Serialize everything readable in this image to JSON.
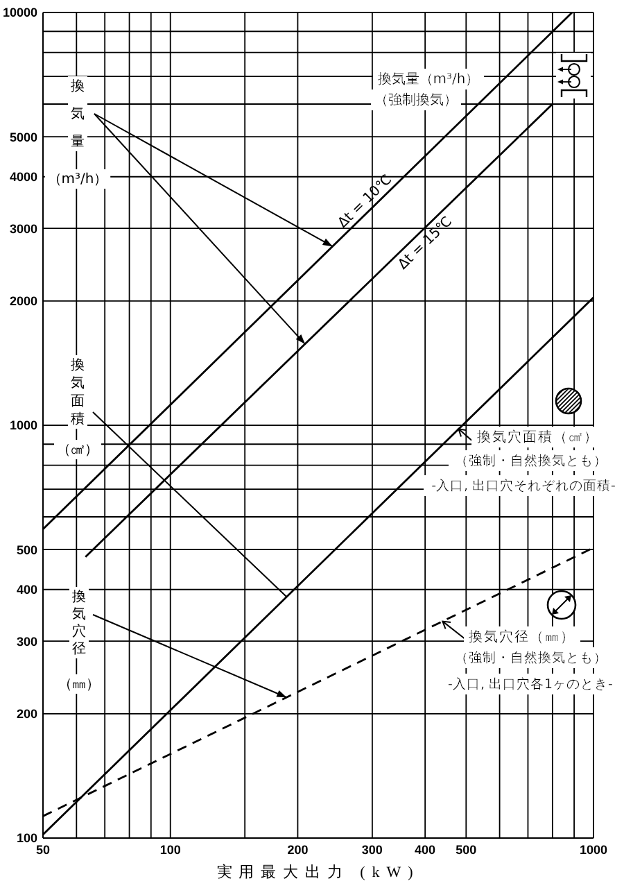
{
  "chart_data": {
    "type": "line",
    "xlabel": "実用最大出力 (kW)",
    "series": [
      {
        "name": "Δt = 10℃",
        "color": "#000000",
        "x": [
          50,
          890
        ],
        "values": [
          560,
          10000
        ]
      },
      {
        "name": "Δt = 15℃",
        "color": "#000000",
        "x": [
          63,
          800
        ],
        "values": [
          480,
          6000
        ]
      },
      {
        "color": "#000000",
        "x": [
          50,
          1000
        ],
        "values": [
          102,
          2040
        ]
      },
      {
        "color": "#000000",
        "x": [
          50,
          1000
        ],
        "values": [
          113,
          505
        ],
        "line_style": "dashed"
      }
    ],
    "annotations": [
      "換気量（m³/h）",
      "換気面積（㎠）",
      "換気穴径（㎜）",
      "換気量（m³/h）",
      "（強制換気）",
      {
        "text": "換気穴面積（㎠）",
        "x": 480,
        "y": 980
      },
      "（強制・自然換気とも）",
      "-入口, 出口穴それぞれの面積-",
      {
        "text": "換気穴径（㎜）",
        "x": 440,
        "y": 335
      },
      "（強制・自然換気とも）",
      "-入口, 出口穴各1ヶのとき-"
    ],
    "xlim": [
      50,
      1000
    ],
    "ylim": [
      100,
      10000
    ],
    "xticks": [
      50,
      {
        "value": 60,
        "label": null
      },
      {
        "value": 70,
        "label": null
      },
      {
        "value": 80,
        "label": null
      },
      {
        "value": 90,
        "label": null
      },
      100,
      {
        "value": 150,
        "label": null
      },
      200,
      300,
      400,
      500,
      {
        "value": 600,
        "label": null
      },
      {
        "value": 700,
        "label": null
      },
      {
        "value": 800,
        "label": null
      },
      {
        "value": 900,
        "label": null
      },
      1000
    ],
    "yticks": [
      100,
      200,
      300,
      400,
      500,
      {
        "value": 600,
        "label": null
      },
      {
        "value": 700,
        "label": null
      },
      {
        "value": 800,
        "label": null
      },
      {
        "value": 900,
        "label": null
      },
      1000,
      2000,
      3000,
      4000,
      5000,
      {
        "value": 6000,
        "label": null
      },
      {
        "value": 7000,
        "label": null
      },
      {
        "value": 8000,
        "label": null
      },
      {
        "value": 9000,
        "label": null
      },
      10000
    ],
    "log": "xy",
    "grid": true,
    "marker": "none",
    "line_style": "solid"
  }
}
